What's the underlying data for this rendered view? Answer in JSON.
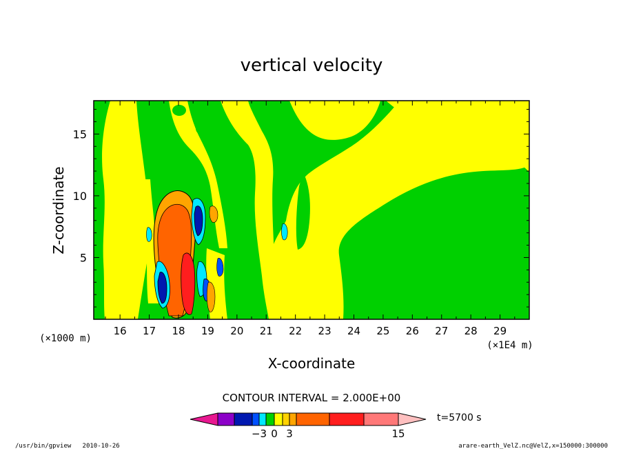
{
  "chart_data": {
    "type": "heatmap",
    "title": "vertical velocity",
    "xlabel": "X-coordinate",
    "ylabel": "Z-coordinate",
    "x_unit_note": "(×1E4 m)",
    "y_unit_note": "(×1000 m)",
    "x_ticks": [
      "16",
      "17",
      "18",
      "19",
      "20",
      "21",
      "22",
      "23",
      "24",
      "25",
      "26",
      "27",
      "28",
      "29"
    ],
    "y_ticks": [
      "5",
      "10",
      "15"
    ],
    "xlim": [
      15.1,
      30.0
    ],
    "ylim": [
      0.0,
      17.7
    ],
    "contour_interval_label": "CONTOUR INTERVAL = 2.000E+00",
    "time_label": "t=5700 s",
    "colorbar": {
      "colors": [
        "#e81890",
        "#8c00c8",
        "#0018b0",
        "#0050ff",
        "#00e8ff",
        "#00d000",
        "#ffff00",
        "#ffd200",
        "#ffa500",
        "#ff6400",
        "#ff1e1e",
        "#ff7878",
        "#ffc0c0"
      ],
      "tick_labels": [
        {
          "label": "−3",
          "after_index": 3
        },
        {
          "label": "0",
          "after_index": 5
        },
        {
          "label": "3",
          "after_index": 7
        },
        {
          "label": "15",
          "after_index": 11
        }
      ]
    }
  },
  "footer": {
    "left": "/usr/bin/gpview   2010-10-26",
    "right": "arare-earth_VelZ.nc@VelZ,x=150000:300000"
  }
}
